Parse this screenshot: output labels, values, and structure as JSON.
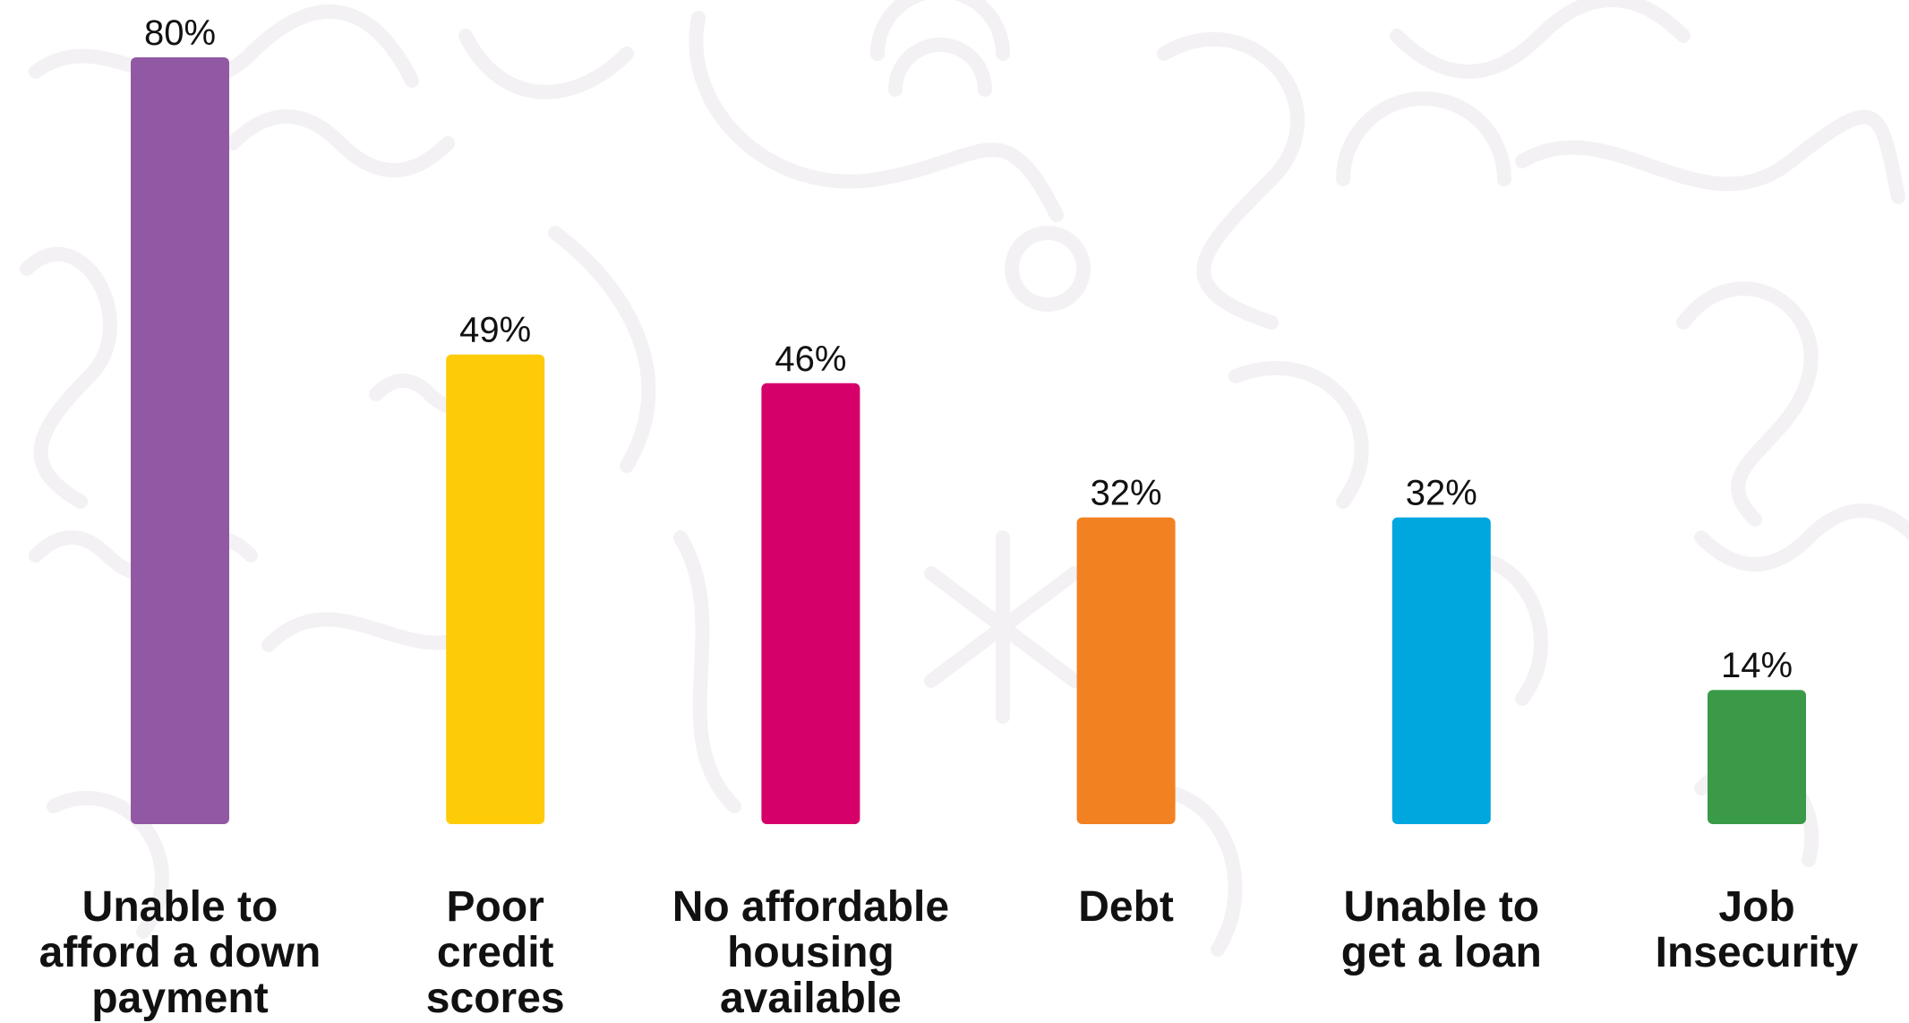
{
  "chart_data": {
    "type": "bar",
    "categories": [
      [
        "Unable to",
        "afford a down",
        "payment"
      ],
      [
        "Poor",
        "credit",
        "scores"
      ],
      [
        "No affordable",
        "housing",
        "available"
      ],
      [
        "Debt"
      ],
      [
        "Unable to",
        "get a loan"
      ],
      [
        "Job",
        "Insecurity"
      ]
    ],
    "values": [
      80,
      49,
      46,
      32,
      32,
      14
    ],
    "value_labels": [
      "80%",
      "49%",
      "46%",
      "32%",
      "32%",
      "14%"
    ],
    "colors": [
      "#9159a3",
      "#fecb08",
      "#d6006b",
      "#f28121",
      "#00a6de",
      "#3a9a48"
    ],
    "ylim": [
      0,
      80
    ],
    "title": "",
    "xlabel": "",
    "ylabel": "",
    "grid": false,
    "legend": "none",
    "background_pattern": "light-gray doodles"
  }
}
